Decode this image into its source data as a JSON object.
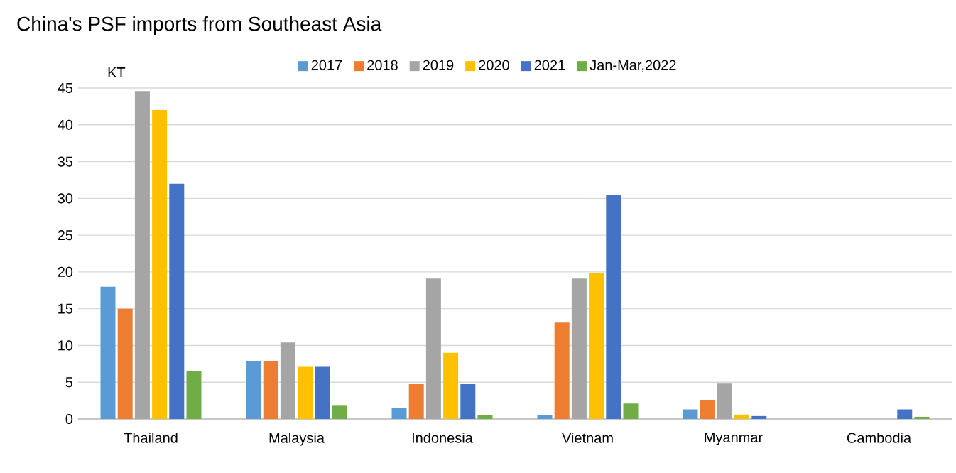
{
  "chart_data": {
    "type": "bar",
    "title": "China's PSF imports from Southeast Asia",
    "ylabel": "KT",
    "categories": [
      "Thailand",
      "Malaysia",
      "Indonesia",
      "Vietnam",
      "Myanmar",
      "Cambodia"
    ],
    "series": [
      {
        "name": "2017",
        "color": "#5b9bd5",
        "values": [
          18.0,
          7.9,
          1.5,
          0.5,
          1.3,
          null
        ]
      },
      {
        "name": "2018",
        "color": "#ed7d31",
        "values": [
          15.0,
          7.9,
          4.8,
          13.1,
          2.6,
          null
        ]
      },
      {
        "name": "2019",
        "color": "#a5a5a5",
        "values": [
          44.6,
          10.4,
          19.1,
          19.1,
          4.9,
          null
        ]
      },
      {
        "name": "2020",
        "color": "#ffc000",
        "values": [
          42.0,
          7.1,
          9.0,
          19.9,
          0.6,
          null
        ]
      },
      {
        "name": "2021",
        "color": "#4472c4",
        "values": [
          32.0,
          7.1,
          4.8,
          30.5,
          0.4,
          1.3
        ]
      },
      {
        "name": "Jan-Mar,2022",
        "color": "#70ad47",
        "values": [
          6.5,
          1.9,
          0.5,
          2.1,
          null,
          0.3
        ]
      }
    ],
    "ylim": [
      0,
      45
    ],
    "yticks": [
      0,
      5,
      10,
      15,
      20,
      25,
      30,
      35,
      40,
      45
    ],
    "grid": "y",
    "legend": "top"
  }
}
